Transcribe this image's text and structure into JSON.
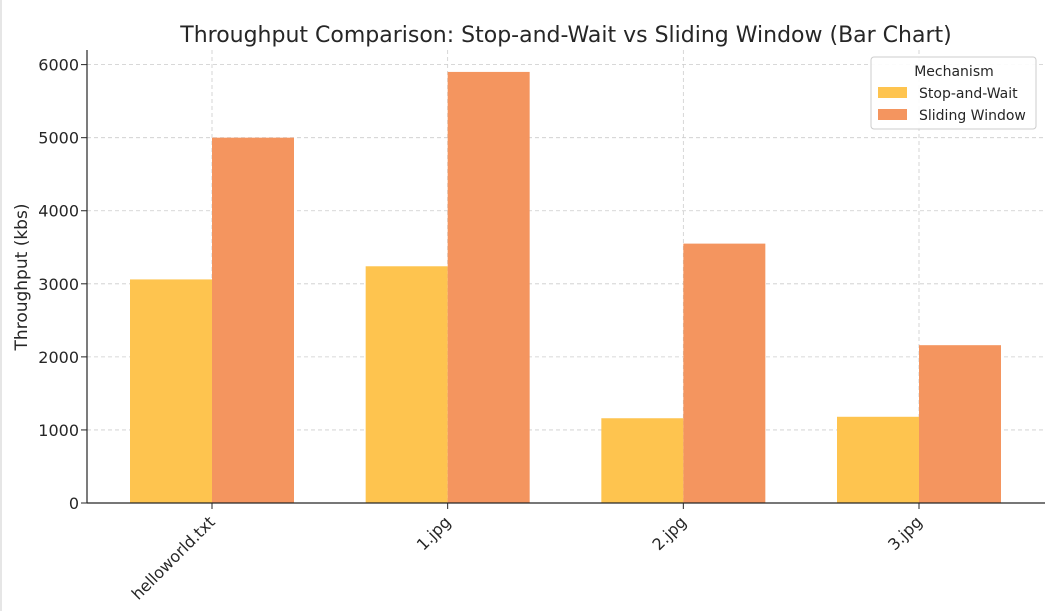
{
  "chart_data": {
    "type": "bar",
    "title": "Throughput Comparison: Stop-and-Wait vs Sliding Window (Bar Chart)",
    "xlabel": "",
    "ylabel": "Throughput (kbs)",
    "categories": [
      "helloworld.txt",
      "1.jpg",
      "2.jpg",
      "3.jpg"
    ],
    "series": [
      {
        "name": "Stop-and-Wait",
        "values": [
          3060,
          3240,
          1160,
          1180
        ],
        "color": "#fec44f"
      },
      {
        "name": "Sliding Window",
        "values": [
          5000,
          5900,
          3550,
          2160
        ],
        "color": "#f4955f"
      }
    ],
    "ylim": [
      0,
      6200
    ],
    "yticks": [
      "0",
      "1000",
      "2000",
      "3000",
      "4000",
      "5000",
      "6000"
    ],
    "grid": true,
    "legend": {
      "title": "Mechanism",
      "placement": "top-right"
    }
  }
}
